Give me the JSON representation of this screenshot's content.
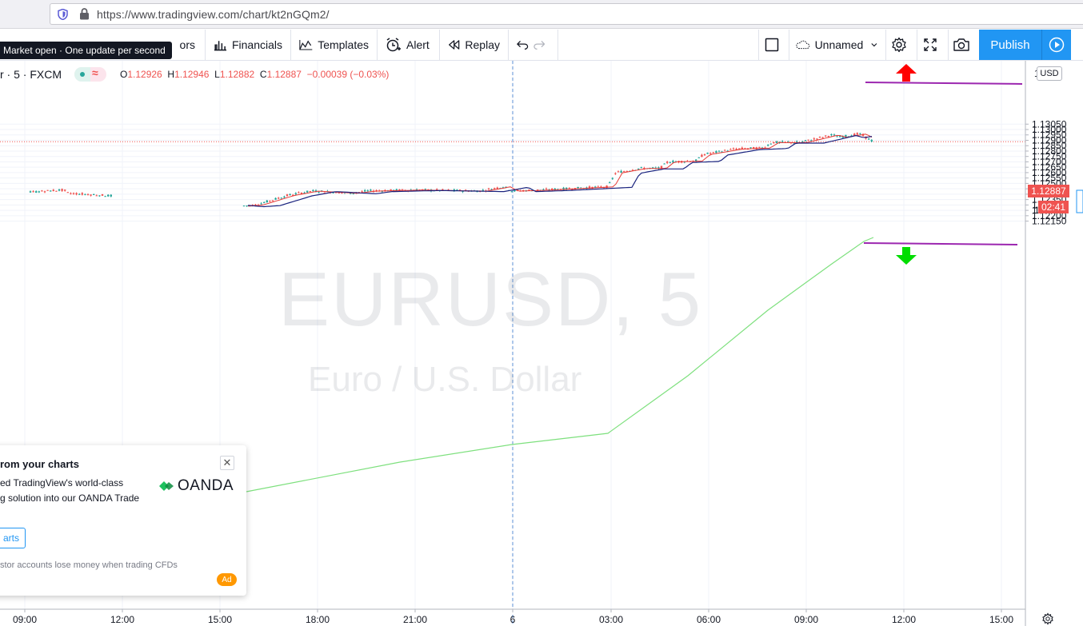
{
  "browser": {
    "url": "https://www.tradingview.com/chart/kt2nGQm2/"
  },
  "toolbar": {
    "indicators_label": "ors",
    "financials_label": "Financials",
    "templates_label": "Templates",
    "alert_label": "Alert",
    "replay_label": "Replay",
    "layout_name": "Unnamed",
    "publish_label": "Publish"
  },
  "tooltip": {
    "text": "Market open · One update per second"
  },
  "legend": {
    "symbol": "r · 5 · FXCM",
    "open_label": "O",
    "open": "1.12926",
    "high_label": "H",
    "high": "1.12946",
    "low_label": "L",
    "low": "1.12882",
    "close_label": "C",
    "close": "1.12887",
    "change": "−0.00039 (−0.03%)"
  },
  "watermark": {
    "symbol": "EURUSD, 5",
    "description": "Euro / U.S. Dollar"
  },
  "price_axis": {
    "currency": "USD",
    "labels": [
      "1.13050",
      "1.13000",
      "1.12950",
      "1.12900",
      "1.12850",
      "1.12800",
      "1.12750",
      "1.12700",
      "1.12650",
      "1.12600",
      "1.12550",
      "1.12500",
      "1.12450",
      "1.12400",
      "1.12350",
      "1.12300",
      "1.12250",
      "1.12200",
      "1.12150"
    ],
    "current_price": "1.12887",
    "countdown": "02:41",
    "top_partial": "1",
    "mid_partial": "1"
  },
  "time_axis": {
    "labels": [
      "09:00",
      "12:00",
      "15:00",
      "18:00",
      "21:00",
      "6",
      "03:00",
      "06:00",
      "09:00",
      "12:00",
      "15:00"
    ]
  },
  "popup": {
    "title": "rom your charts",
    "line1": "ed TradingView's world-class",
    "line2": "g solution into our OANDA Trade",
    "button": "arts",
    "risk": "stor accounts lose money when trading CFDs",
    "ad": "Ad",
    "brand": "OANDA"
  },
  "colors": {
    "accent": "#2196f3",
    "up": "#26a69a",
    "down": "#ef5350",
    "ma_fast": "#e53935",
    "ma_mid": "#1a237e",
    "ma_slow": "#7ee07e",
    "annotation_line": "#9c27b0"
  }
}
